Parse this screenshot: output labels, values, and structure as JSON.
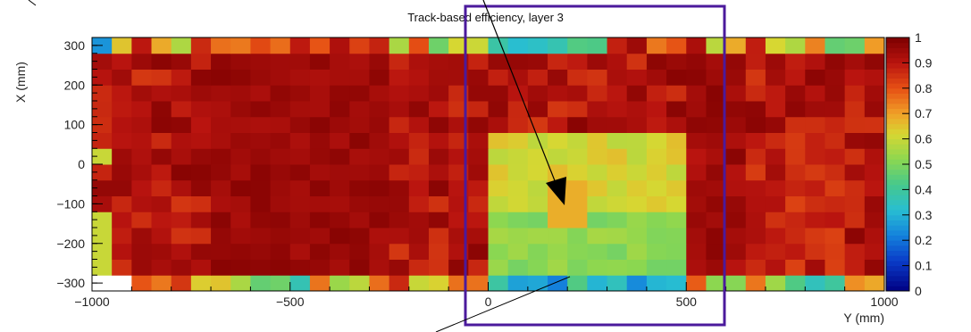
{
  "chart_data": {
    "type": "heatmap",
    "title": "Track-based efficiency, layer 3",
    "xlabel": "Y (mm)",
    "ylabel": "X (mm)",
    "xlim": [
      -1000,
      1000
    ],
    "ylim": [
      -320,
      320
    ],
    "x_ticks": [
      "−1000",
      "−500",
      "0",
      "500",
      "1000"
    ],
    "x_tick_values": [
      -1000,
      -500,
      0,
      500,
      1000
    ],
    "y_ticks": [
      "300",
      "200",
      "100",
      "0",
      "−100",
      "−200",
      "−300"
    ],
    "y_tick_values": [
      300,
      200,
      100,
      0,
      -100,
      -200,
      -300
    ],
    "colorbar": {
      "min": 0,
      "max": 1,
      "tick_labels": [
        "1",
        "0.9",
        "0.8",
        "0.7",
        "0.6",
        "0.5",
        "0.4",
        "0.3",
        "0.2",
        "0.1",
        "0"
      ],
      "tick_values": [
        1,
        0.9,
        0.8,
        0.7,
        0.6,
        0.5,
        0.4,
        0.3,
        0.2,
        0.1,
        0
      ]
    },
    "bins": {
      "x_min": -1000,
      "x_max": 1000,
      "nx": 40,
      "y_min": -320,
      "y_max": 320,
      "ny": 16
    },
    "grid": false,
    "annotations": [
      "highlight rectangle around Y 0 to 600 mm",
      "arrow pointing to low-efficiency region near Y 200 mm, X -100 mm",
      "line pointing to bottom edge near Y 250 mm, X -300 mm"
    ]
  }
}
